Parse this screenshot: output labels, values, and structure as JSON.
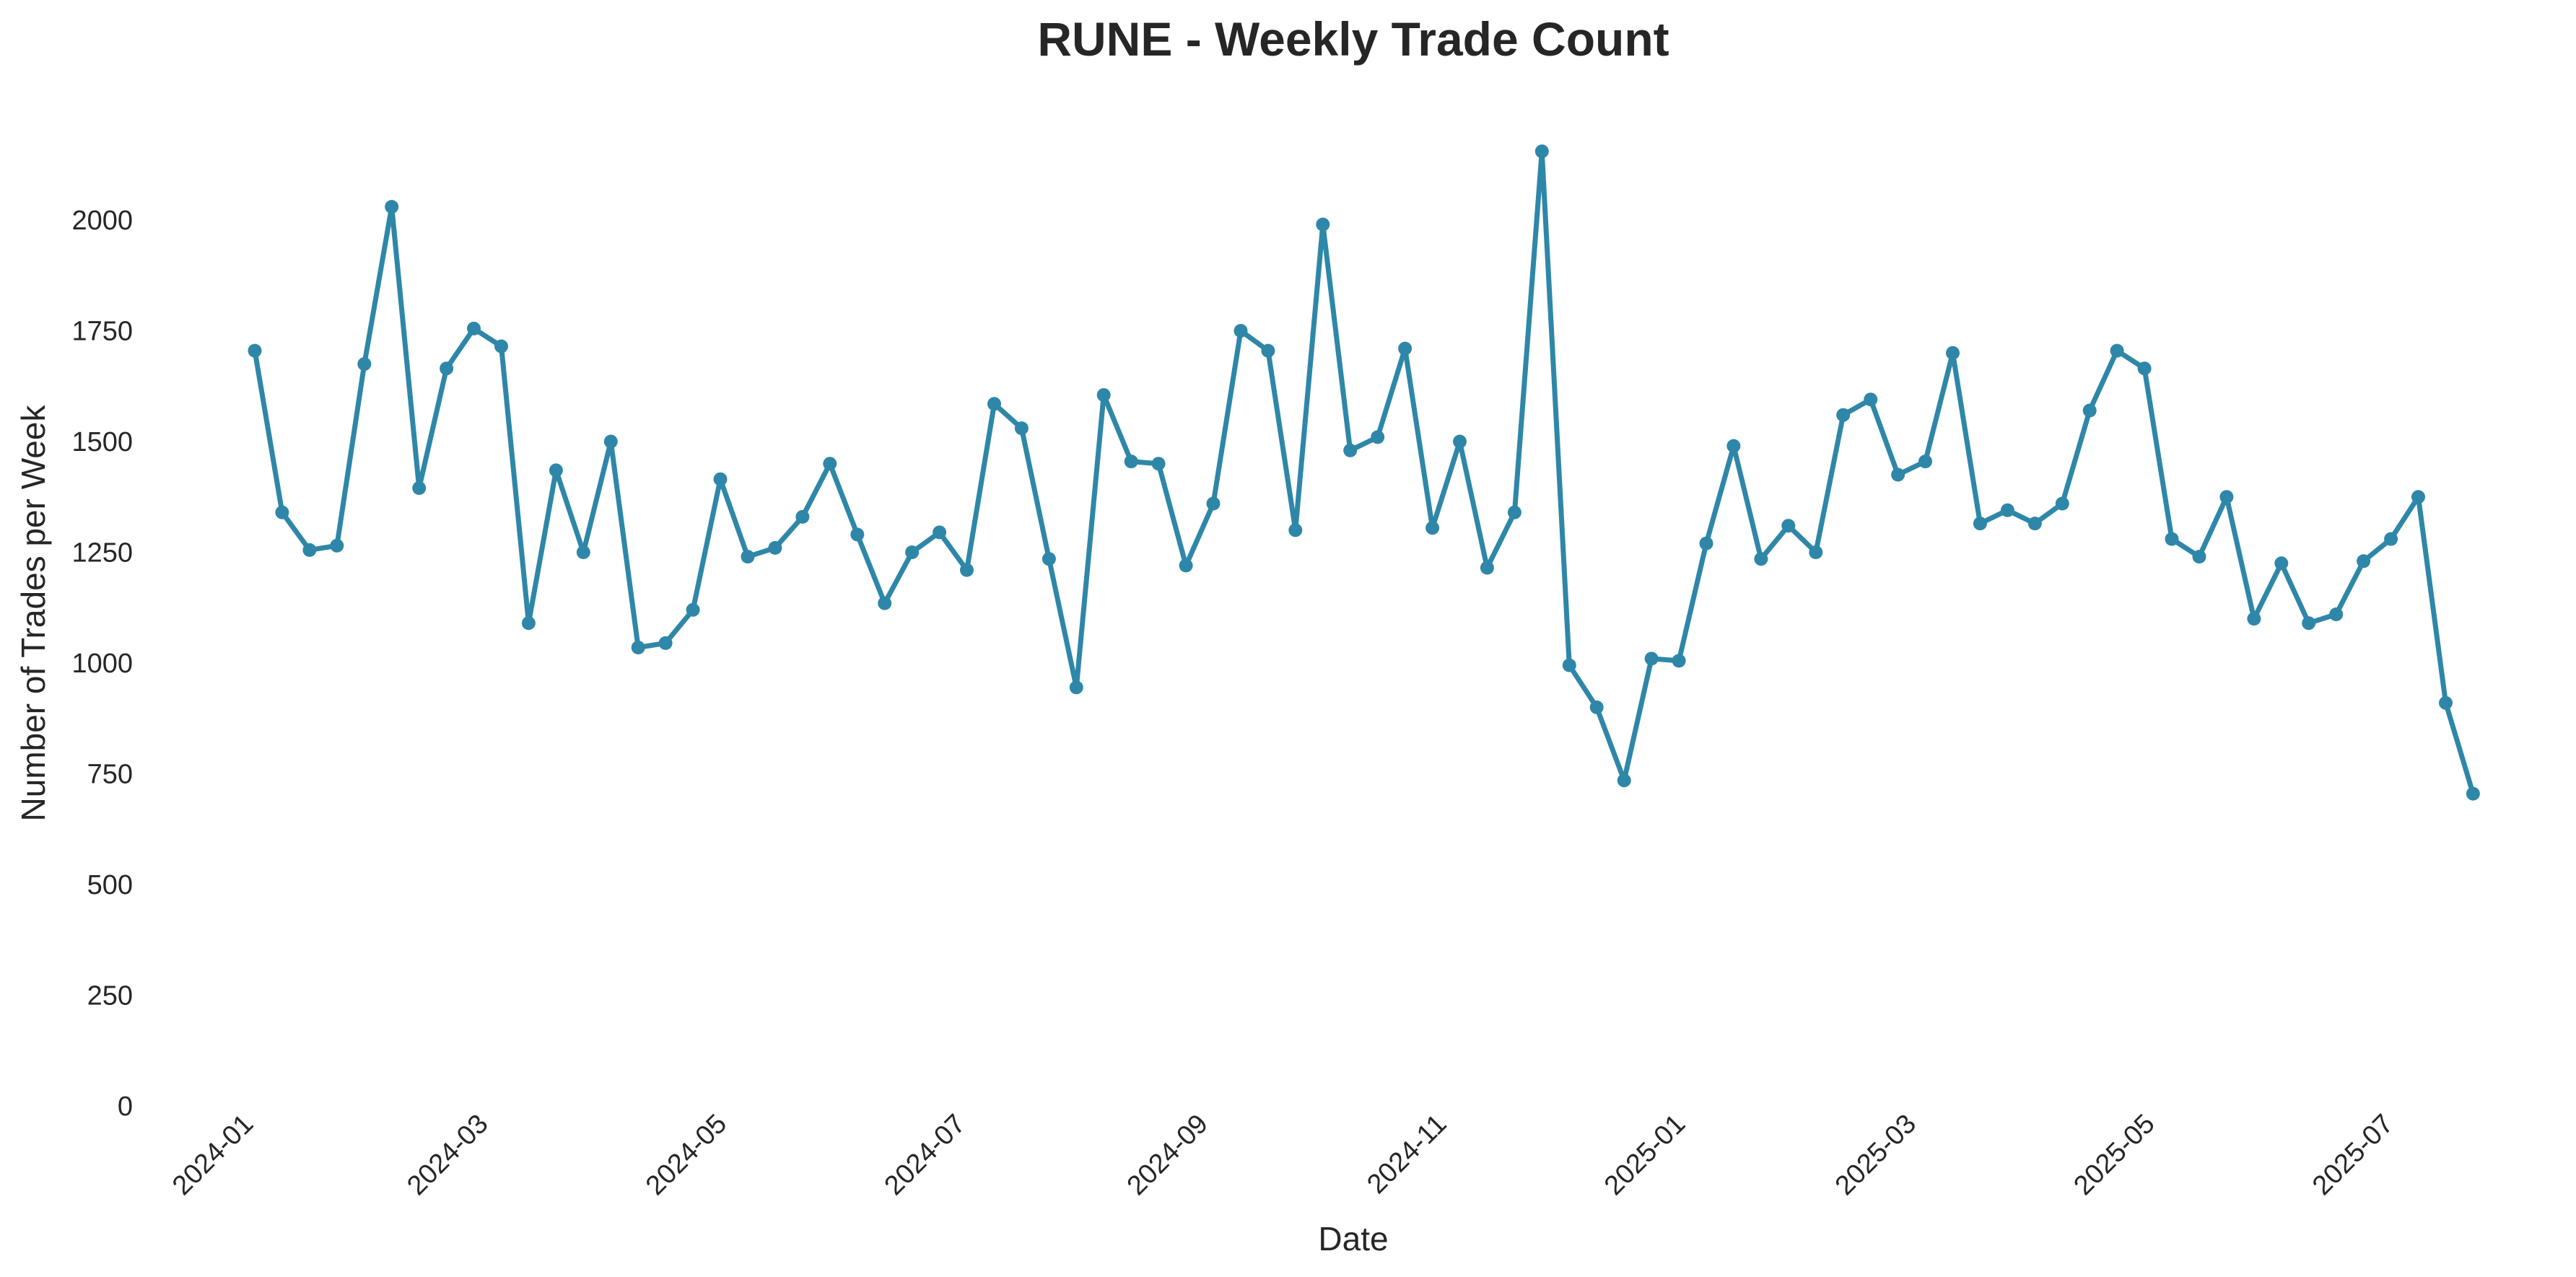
{
  "chart_data": {
    "type": "line",
    "title": "RUNE - Weekly Trade Count",
    "xlabel": "Date",
    "ylabel": "Number of Trades per Week",
    "ylim": [
      0,
      2250
    ],
    "yticks": [
      0,
      250,
      500,
      750,
      1000,
      1250,
      1500,
      1750,
      2000
    ],
    "xticks": [
      "2024-01",
      "2024-03",
      "2024-05",
      "2024-07",
      "2024-09",
      "2024-11",
      "2025-01",
      "2025-03",
      "2025-05",
      "2025-07"
    ],
    "grid": false,
    "legend": "none",
    "color": "#2e87a8",
    "series": [
      {
        "x": [
          "2024-01-01",
          "2024-01-08",
          "2024-01-15",
          "2024-01-22",
          "2024-01-29",
          "2024-02-05",
          "2024-02-12",
          "2024-02-19",
          "2024-02-26",
          "2024-03-04",
          "2024-03-11",
          "2024-03-18",
          "2024-03-25",
          "2024-04-01",
          "2024-04-08",
          "2024-04-15",
          "2024-04-22",
          "2024-04-29",
          "2024-05-06",
          "2024-05-13",
          "2024-05-20",
          "2024-05-27",
          "2024-06-03",
          "2024-06-10",
          "2024-06-17",
          "2024-06-24",
          "2024-07-01",
          "2024-07-08",
          "2024-07-15",
          "2024-07-22",
          "2024-07-29",
          "2024-08-05",
          "2024-08-12",
          "2024-08-19",
          "2024-08-26",
          "2024-09-02",
          "2024-09-09",
          "2024-09-16",
          "2024-09-23",
          "2024-09-30",
          "2024-10-07",
          "2024-10-14",
          "2024-10-21",
          "2024-10-28",
          "2024-11-04",
          "2024-11-11",
          "2024-11-18",
          "2024-11-25",
          "2024-12-02",
          "2024-12-09",
          "2024-12-16",
          "2024-12-23",
          "2024-12-30",
          "2025-01-06",
          "2025-01-13",
          "2025-01-20",
          "2025-01-27",
          "2025-02-03",
          "2025-02-10",
          "2025-02-17",
          "2025-02-24",
          "2025-03-03",
          "2025-03-10",
          "2025-03-17",
          "2025-03-24",
          "2025-03-31",
          "2025-04-07",
          "2025-04-14",
          "2025-04-21",
          "2025-04-28",
          "2025-05-05",
          "2025-05-12",
          "2025-05-19",
          "2025-05-26",
          "2025-06-02",
          "2025-06-09",
          "2025-06-16",
          "2025-06-23",
          "2025-06-30",
          "2025-07-07",
          "2025-07-14",
          "2025-07-21"
        ],
        "values": [
          1705,
          1340,
          1255,
          1265,
          1675,
          2030,
          1395,
          1665,
          1755,
          1715,
          1090,
          1435,
          1250,
          1500,
          1035,
          1045,
          1120,
          1415,
          1240,
          1260,
          1330,
          1450,
          1290,
          1135,
          1250,
          1295,
          1210,
          1585,
          1530,
          1235,
          945,
          1605,
          1455,
          1450,
          1220,
          1360,
          1750,
          1705,
          1300,
          1990,
          1480,
          1510,
          1710,
          1305,
          1500,
          1215,
          1340,
          2155,
          995,
          900,
          735,
          1010,
          1005,
          1270,
          1490,
          1235,
          1310,
          1250,
          1560,
          1595,
          1425,
          1455,
          1700,
          1315,
          1345,
          1315,
          1360,
          1570,
          1705,
          1665,
          1280,
          1240,
          1375,
          1100,
          1225,
          1090,
          1110,
          1230,
          1280,
          1375,
          910,
          705
        ]
      }
    ]
  }
}
